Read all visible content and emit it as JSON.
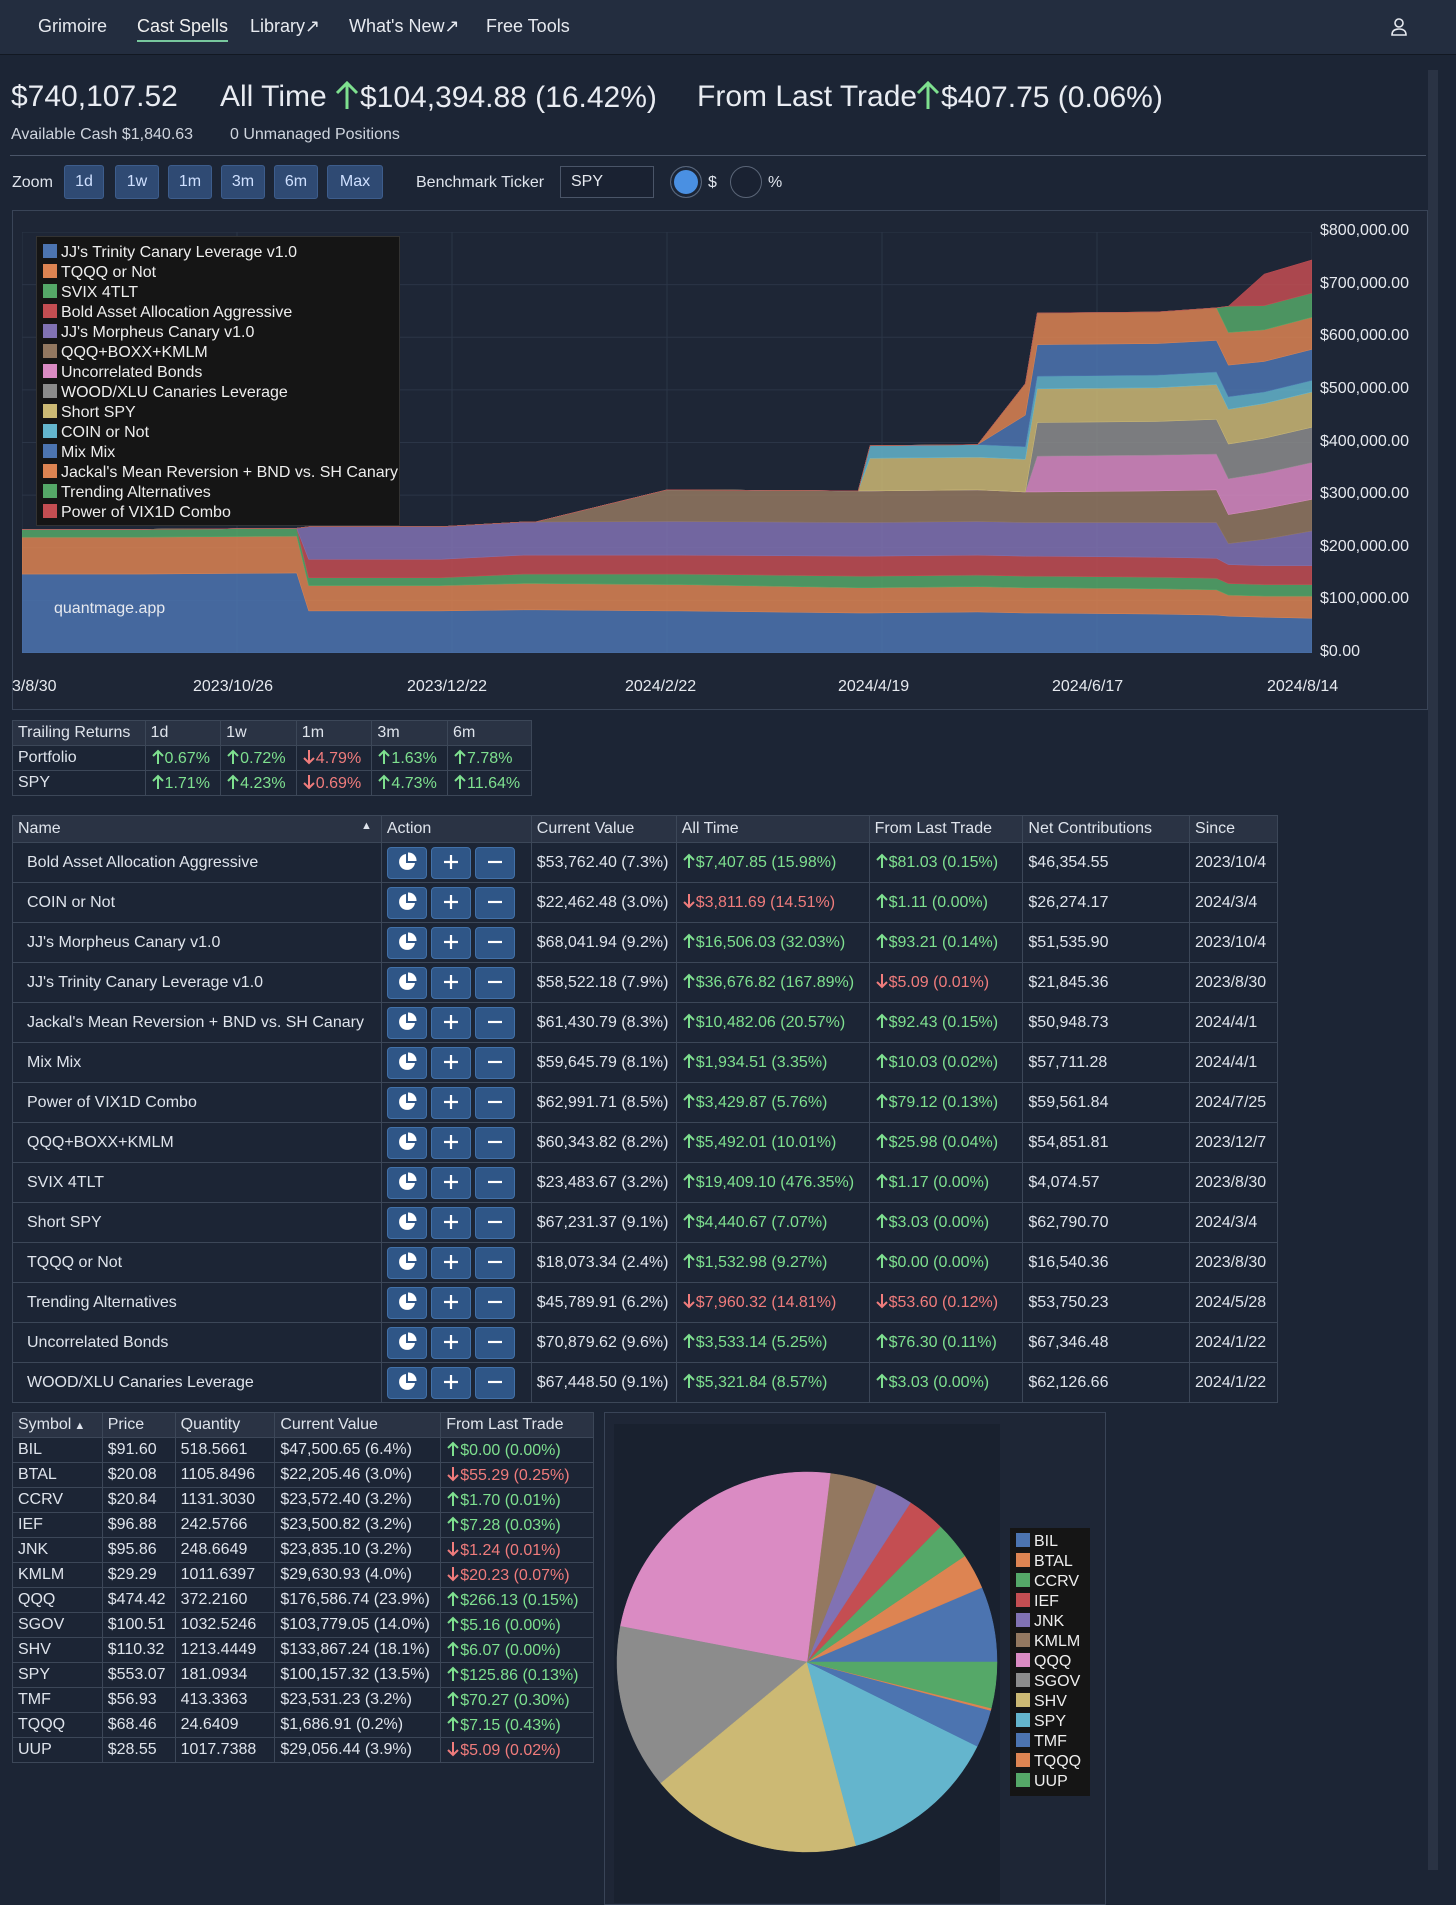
{
  "nav": {
    "items": [
      "Grimoire",
      "Cast Spells",
      "Library↗",
      "What's New↗",
      "Free Tools"
    ],
    "active": "Cast Spells"
  },
  "summary": {
    "total": "$740,107.52",
    "all_time_label": "All Time",
    "all_time_value": "$104,394.88 (16.42%)",
    "last_trade_label": "From Last Trade",
    "last_trade_value": "$407.75 (0.06%)",
    "cash": "Available Cash $1,840.63",
    "unmanaged": "0 Unmanaged Positions"
  },
  "zoom": {
    "label": "Zoom",
    "buttons": [
      "1d",
      "1w",
      "1m",
      "3m",
      "6m",
      "Max"
    ],
    "benchmark_label": "Benchmark Ticker",
    "benchmark_value": "SPY",
    "radio_dollar": "$",
    "radio_percent": "%"
  },
  "chart_data": {
    "type": "area",
    "stacked": true,
    "watermark": "quantmage.app",
    "y_ticks": [
      "$800,000.00",
      "$700,000.00",
      "$600,000.00",
      "$500,000.00",
      "$400,000.00",
      "$300,000.00",
      "$200,000.00",
      "$100,000.00",
      "$0.00"
    ],
    "x_ticks": [
      "3/8/30",
      "2023/10/26",
      "2023/12/22",
      "2024/2/22",
      "2024/4/19",
      "2024/6/17",
      "2024/8/14"
    ],
    "ylim": [
      0,
      800000
    ],
    "x": [
      0,
      10,
      23,
      24,
      35,
      42,
      43,
      54,
      55,
      70,
      71,
      80,
      84,
      85,
      95,
      100,
      101,
      104,
      108
    ],
    "series": [
      {
        "name": "JJ's Trinity Canary Leverage v1.0",
        "color": "#4c74b0",
        "values": [
          150000,
          150000,
          152000,
          80000,
          80000,
          82000,
          82000,
          80000,
          80000,
          76000,
          76000,
          78000,
          76000,
          76000,
          74000,
          72000,
          70000,
          68000,
          66000
        ]
      },
      {
        "name": "TQQQ or Not",
        "color": "#dd8452",
        "values": [
          70000,
          70000,
          70000,
          48000,
          48000,
          50000,
          50000,
          50000,
          50000,
          48000,
          48000,
          48000,
          48000,
          48000,
          48000,
          48000,
          40000,
          40000,
          42000
        ]
      },
      {
        "name": "SVIX 4TLT",
        "color": "#55a868",
        "values": [
          15000,
          15000,
          15000,
          15000,
          15000,
          18000,
          18000,
          20000,
          20000,
          22000,
          22000,
          22000,
          22000,
          22000,
          22000,
          22000,
          22000,
          22000,
          22000
        ]
      },
      {
        "name": "Bold Asset Allocation Aggressive",
        "color": "#c44e52",
        "values": [
          0,
          0,
          0,
          35000,
          35000,
          36000,
          36000,
          36000,
          36000,
          38000,
          38000,
          38000,
          38000,
          38000,
          38000,
          38000,
          36000,
          36000,
          36000
        ]
      },
      {
        "name": "JJ's Morpheus Canary v1.0",
        "color": "#8172b3",
        "values": [
          0,
          0,
          0,
          62000,
          62000,
          63000,
          63000,
          64000,
          64000,
          64000,
          64000,
          64000,
          64000,
          64000,
          66000,
          68000,
          40000,
          50000,
          66000
        ]
      },
      {
        "name": "QQQ+BOXX+KMLM",
        "color": "#937860",
        "values": [
          0,
          0,
          0,
          0,
          0,
          0,
          0,
          60000,
          60000,
          60000,
          60000,
          60000,
          58000,
          58000,
          60000,
          62000,
          55000,
          58000,
          60000
        ]
      },
      {
        "name": "Uncorrelated Bonds",
        "color": "#da8bc3",
        "values": [
          0,
          0,
          0,
          0,
          0,
          0,
          0,
          0,
          0,
          0,
          0,
          0,
          0,
          68000,
          68000,
          68000,
          68000,
          68000,
          70000
        ]
      },
      {
        "name": "WOOD/XLU Canaries Leverage",
        "color": "#8c8c8c",
        "values": [
          0,
          0,
          0,
          0,
          0,
          0,
          0,
          0,
          0,
          0,
          0,
          0,
          0,
          64000,
          64000,
          66000,
          66000,
          66000,
          67000
        ]
      },
      {
        "name": "Short SPY",
        "color": "#ccb974",
        "values": [
          0,
          0,
          0,
          0,
          0,
          0,
          0,
          0,
          0,
          0,
          62000,
          62000,
          62000,
          64000,
          64000,
          66000,
          66000,
          66000,
          67000
        ]
      },
      {
        "name": "COIN or Not",
        "color": "#64b5cd",
        "values": [
          0,
          0,
          0,
          0,
          0,
          0,
          0,
          0,
          0,
          0,
          24000,
          24000,
          24000,
          24000,
          24000,
          24000,
          24000,
          22000,
          22000
        ]
      },
      {
        "name": "Mix Mix",
        "color": "#4c74b0",
        "values": [
          0,
          0,
          0,
          0,
          0,
          0,
          0,
          0,
          0,
          0,
          0,
          0,
          60000,
          60000,
          60000,
          60000,
          60000,
          58000,
          59000
        ]
      },
      {
        "name": "Jackal's Mean Reversion + BND vs. SH Canary",
        "color": "#dd8452",
        "values": [
          0,
          0,
          0,
          0,
          0,
          0,
          0,
          0,
          0,
          0,
          0,
          0,
          60000,
          60000,
          60000,
          62000,
          62000,
          60000,
          61000
        ]
      },
      {
        "name": "Trending Alternatives",
        "color": "#55a868",
        "values": [
          0,
          0,
          0,
          0,
          0,
          0,
          0,
          0,
          0,
          0,
          0,
          0,
          0,
          0,
          0,
          0,
          50000,
          46000,
          46000
        ]
      },
      {
        "name": "Power of VIX1D Combo",
        "color": "#c44e52",
        "values": [
          0,
          0,
          0,
          0,
          0,
          0,
          0,
          0,
          0,
          0,
          0,
          0,
          0,
          0,
          0,
          0,
          0,
          60000,
          63000
        ]
      }
    ]
  },
  "trailing": {
    "headers": [
      "Trailing Returns",
      "1d",
      "1w",
      "1m",
      "3m",
      "6m"
    ],
    "rows": [
      {
        "label": "Portfolio",
        "cells": [
          {
            "v": "0.67%",
            "d": "up"
          },
          {
            "v": "0.72%",
            "d": "up"
          },
          {
            "v": "4.79%",
            "d": "down"
          },
          {
            "v": "1.63%",
            "d": "up"
          },
          {
            "v": "7.78%",
            "d": "up"
          }
        ]
      },
      {
        "label": "SPY",
        "cells": [
          {
            "v": "1.71%",
            "d": "up"
          },
          {
            "v": "4.23%",
            "d": "up"
          },
          {
            "v": "0.69%",
            "d": "down"
          },
          {
            "v": "4.73%",
            "d": "up"
          },
          {
            "v": "11.64%",
            "d": "up"
          }
        ]
      }
    ]
  },
  "spells": {
    "headers": [
      "Name",
      "Action",
      "Current Value",
      "All Time",
      "From Last Trade",
      "Net Contributions",
      "Since"
    ],
    "rows": [
      {
        "name": "Bold Asset Allocation Aggressive",
        "value": "$53,762.40 (7.3%)",
        "all_time": "$7,407.85 (15.98%)",
        "at_dir": "up",
        "last": "$81.03 (0.15%)",
        "lt_dir": "up",
        "net": "$46,354.55",
        "since": "2023/10/4"
      },
      {
        "name": "COIN or Not",
        "value": "$22,462.48 (3.0%)",
        "all_time": "$3,811.69 (14.51%)",
        "at_dir": "down",
        "last": "$1.11 (0.00%)",
        "lt_dir": "up",
        "net": "$26,274.17",
        "since": "2024/3/4"
      },
      {
        "name": "JJ's Morpheus Canary v1.0",
        "value": "$68,041.94 (9.2%)",
        "all_time": "$16,506.03 (32.03%)",
        "at_dir": "up",
        "last": "$93.21 (0.14%)",
        "lt_dir": "up",
        "net": "$51,535.90",
        "since": "2023/10/4"
      },
      {
        "name": "JJ's Trinity Canary Leverage v1.0",
        "value": "$58,522.18 (7.9%)",
        "all_time": "$36,676.82 (167.89%)",
        "at_dir": "up",
        "last": "$5.09 (0.01%)",
        "lt_dir": "down",
        "net": "$21,845.36",
        "since": "2023/8/30"
      },
      {
        "name": "Jackal's Mean Reversion + BND vs. SH Canary",
        "value": "$61,430.79 (8.3%)",
        "all_time": "$10,482.06 (20.57%)",
        "at_dir": "up",
        "last": "$92.43 (0.15%)",
        "lt_dir": "up",
        "net": "$50,948.73",
        "since": "2024/4/1"
      },
      {
        "name": "Mix Mix",
        "value": "$59,645.79 (8.1%)",
        "all_time": "$1,934.51 (3.35%)",
        "at_dir": "up",
        "last": "$10.03 (0.02%)",
        "lt_dir": "up",
        "net": "$57,711.28",
        "since": "2024/4/1"
      },
      {
        "name": "Power of VIX1D Combo",
        "value": "$62,991.71 (8.5%)",
        "all_time": "$3,429.87 (5.76%)",
        "at_dir": "up",
        "last": "$79.12 (0.13%)",
        "lt_dir": "up",
        "net": "$59,561.84",
        "since": "2024/7/25"
      },
      {
        "name": "QQQ+BOXX+KMLM",
        "value": "$60,343.82 (8.2%)",
        "all_time": "$5,492.01 (10.01%)",
        "at_dir": "up",
        "last": "$25.98 (0.04%)",
        "lt_dir": "up",
        "net": "$54,851.81",
        "since": "2023/12/7"
      },
      {
        "name": "SVIX 4TLT",
        "value": "$23,483.67 (3.2%)",
        "all_time": "$19,409.10 (476.35%)",
        "at_dir": "up",
        "last": "$1.17 (0.00%)",
        "lt_dir": "up",
        "net": "$4,074.57",
        "since": "2023/8/30"
      },
      {
        "name": "Short SPY",
        "value": "$67,231.37 (9.1%)",
        "all_time": "$4,440.67 (7.07%)",
        "at_dir": "up",
        "last": "$3.03 (0.00%)",
        "lt_dir": "up",
        "net": "$62,790.70",
        "since": "2024/3/4"
      },
      {
        "name": "TQQQ or Not",
        "value": "$18,073.34 (2.4%)",
        "all_time": "$1,532.98 (9.27%)",
        "at_dir": "up",
        "last": "$0.00 (0.00%)",
        "lt_dir": "up",
        "net": "$16,540.36",
        "since": "2023/8/30"
      },
      {
        "name": "Trending Alternatives",
        "value": "$45,789.91 (6.2%)",
        "all_time": "$7,960.32 (14.81%)",
        "at_dir": "down",
        "last": "$53.60 (0.12%)",
        "lt_dir": "down",
        "net": "$53,750.23",
        "since": "2024/5/28"
      },
      {
        "name": "Uncorrelated Bonds",
        "value": "$70,879.62 (9.6%)",
        "all_time": "$3,533.14 (5.25%)",
        "at_dir": "up",
        "last": "$76.30 (0.11%)",
        "lt_dir": "up",
        "net": "$67,346.48",
        "since": "2024/1/22"
      },
      {
        "name": "WOOD/XLU Canaries Leverage",
        "value": "$67,448.50 (9.1%)",
        "all_time": "$5,321.84 (8.57%)",
        "at_dir": "up",
        "last": "$3.03 (0.00%)",
        "lt_dir": "up",
        "net": "$62,126.66",
        "since": "2024/1/22"
      }
    ]
  },
  "holdings": {
    "headers": [
      "Symbol",
      "Price",
      "Quantity",
      "Current Value",
      "From Last Trade"
    ],
    "rows": [
      {
        "symbol": "BIL",
        "price": "$91.60",
        "qty": "518.5661",
        "value": "$47,500.65 (6.4%)",
        "last": "$0.00 (0.00%)",
        "dir": "up"
      },
      {
        "symbol": "BTAL",
        "price": "$20.08",
        "qty": "1105.8496",
        "value": "$22,205.46 (3.0%)",
        "last": "$55.29 (0.25%)",
        "dir": "down"
      },
      {
        "symbol": "CCRV",
        "price": "$20.84",
        "qty": "1131.3030",
        "value": "$23,572.40 (3.2%)",
        "last": "$1.70 (0.01%)",
        "dir": "up"
      },
      {
        "symbol": "IEF",
        "price": "$96.88",
        "qty": "242.5766",
        "value": "$23,500.82 (3.2%)",
        "last": "$7.28 (0.03%)",
        "dir": "up"
      },
      {
        "symbol": "JNK",
        "price": "$95.86",
        "qty": "248.6649",
        "value": "$23,835.10 (3.2%)",
        "last": "$1.24 (0.01%)",
        "dir": "down"
      },
      {
        "symbol": "KMLM",
        "price": "$29.29",
        "qty": "1011.6397",
        "value": "$29,630.93 (4.0%)",
        "last": "$20.23 (0.07%)",
        "dir": "down"
      },
      {
        "symbol": "QQQ",
        "price": "$474.42",
        "qty": "372.2160",
        "value": "$176,586.74 (23.9%)",
        "last": "$266.13 (0.15%)",
        "dir": "up"
      },
      {
        "symbol": "SGOV",
        "price": "$100.51",
        "qty": "1032.5246",
        "value": "$103,779.05 (14.0%)",
        "last": "$5.16 (0.00%)",
        "dir": "up"
      },
      {
        "symbol": "SHV",
        "price": "$110.32",
        "qty": "1213.4449",
        "value": "$133,867.24 (18.1%)",
        "last": "$6.07 (0.00%)",
        "dir": "up"
      },
      {
        "symbol": "SPY",
        "price": "$553.07",
        "qty": "181.0934",
        "value": "$100,157.32 (13.5%)",
        "last": "$125.86 (0.13%)",
        "dir": "up"
      },
      {
        "symbol": "TMF",
        "price": "$56.93",
        "qty": "413.3363",
        "value": "$23,531.23 (3.2%)",
        "last": "$70.27 (0.30%)",
        "dir": "up"
      },
      {
        "symbol": "TQQQ",
        "price": "$68.46",
        "qty": "24.6409",
        "value": "$1,686.91 (0.2%)",
        "last": "$7.15 (0.43%)",
        "dir": "up"
      },
      {
        "symbol": "UUP",
        "price": "$28.55",
        "qty": "1017.7388",
        "value": "$29,056.44 (3.9%)",
        "last": "$5.09 (0.02%)",
        "dir": "down"
      }
    ]
  },
  "pie": {
    "slices": [
      {
        "label": "BIL",
        "value": 6.4,
        "color": "#4c74b0"
      },
      {
        "label": "BTAL",
        "value": 3.0,
        "color": "#dd8452"
      },
      {
        "label": "CCRV",
        "value": 3.2,
        "color": "#55a868"
      },
      {
        "label": "IEF",
        "value": 3.2,
        "color": "#c44e52"
      },
      {
        "label": "JNK",
        "value": 3.2,
        "color": "#8172b3"
      },
      {
        "label": "KMLM",
        "value": 4.0,
        "color": "#937860"
      },
      {
        "label": "QQQ",
        "value": 23.9,
        "color": "#da8bc3"
      },
      {
        "label": "SGOV",
        "value": 14.0,
        "color": "#8c8c8c"
      },
      {
        "label": "SHV",
        "value": 18.1,
        "color": "#ccb974"
      },
      {
        "label": "SPY",
        "value": 13.5,
        "color": "#64b5cd"
      },
      {
        "label": "TMF",
        "value": 3.2,
        "color": "#4c74b0"
      },
      {
        "label": "TQQQ",
        "value": 0.2,
        "color": "#dd8452"
      },
      {
        "label": "UUP",
        "value": 3.9,
        "color": "#55a868"
      }
    ]
  }
}
